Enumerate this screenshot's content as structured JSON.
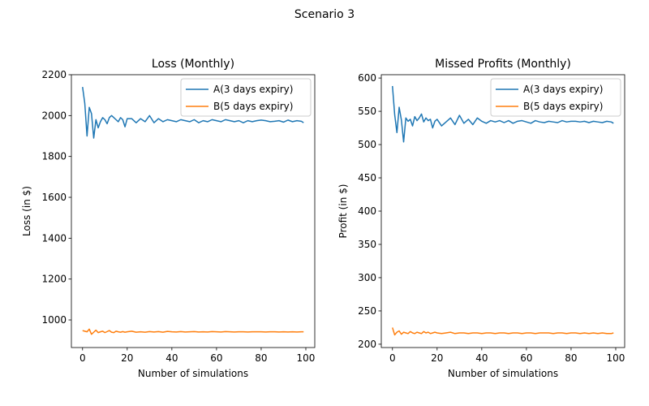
{
  "figure": {
    "suptitle": "Scenario 3"
  },
  "chart_data": [
    {
      "type": "line",
      "title": "Loss (Monthly)",
      "xlabel": "Number of simulations",
      "ylabel": "Loss (in $)",
      "xlim": [
        -5,
        104
      ],
      "ylim": [
        865,
        2200
      ],
      "xticks": [
        0,
        20,
        40,
        60,
        80,
        100
      ],
      "yticks": [
        1000,
        1200,
        1400,
        1600,
        1800,
        2000,
        2200
      ],
      "legend_position": "top-right",
      "grid": false,
      "series": [
        {
          "name": "A(3 days expiry)",
          "color": "#1f77b4",
          "x": [
            0,
            1,
            2,
            3,
            4,
            5,
            6,
            7,
            8,
            9,
            10,
            11,
            12,
            13,
            14,
            15,
            16,
            17,
            18,
            19,
            20,
            22,
            24,
            26,
            28,
            30,
            32,
            34,
            36,
            38,
            40,
            42,
            44,
            46,
            48,
            50,
            52,
            54,
            56,
            58,
            60,
            62,
            64,
            66,
            68,
            70,
            72,
            74,
            76,
            78,
            80,
            82,
            84,
            86,
            88,
            90,
            92,
            94,
            96,
            98,
            99
          ],
          "y": [
            2140,
            2060,
            1900,
            2040,
            2010,
            1890,
            1980,
            1940,
            1970,
            1990,
            1980,
            1960,
            1990,
            2000,
            1990,
            1980,
            1970,
            1990,
            1980,
            1945,
            1985,
            1985,
            1965,
            1985,
            1970,
            2000,
            1965,
            1985,
            1970,
            1980,
            1975,
            1970,
            1980,
            1975,
            1970,
            1980,
            1965,
            1975,
            1970,
            1980,
            1975,
            1970,
            1980,
            1975,
            1970,
            1975,
            1965,
            1975,
            1970,
            1975,
            1978,
            1975,
            1970,
            1972,
            1975,
            1968,
            1978,
            1970,
            1975,
            1972,
            1965
          ]
        },
        {
          "name": "B(5 days expiry)",
          "color": "#ff7f0e",
          "x": [
            0,
            1,
            2,
            3,
            4,
            5,
            6,
            7,
            8,
            9,
            10,
            11,
            12,
            13,
            14,
            15,
            16,
            17,
            18,
            19,
            20,
            22,
            24,
            26,
            28,
            30,
            32,
            34,
            36,
            38,
            40,
            42,
            44,
            46,
            48,
            50,
            52,
            54,
            56,
            58,
            60,
            62,
            64,
            66,
            68,
            70,
            72,
            74,
            76,
            78,
            80,
            82,
            84,
            86,
            88,
            90,
            92,
            94,
            96,
            98,
            99
          ],
          "y": [
            948,
            945,
            942,
            955,
            930,
            940,
            950,
            938,
            942,
            945,
            938,
            943,
            948,
            940,
            938,
            945,
            942,
            940,
            943,
            940,
            942,
            945,
            940,
            942,
            940,
            943,
            941,
            943,
            940,
            944,
            942,
            941,
            943,
            941,
            942,
            943,
            941,
            942,
            941,
            943,
            942,
            941,
            943,
            942,
            941,
            942,
            942,
            941,
            942,
            942,
            942,
            941,
            942,
            942,
            941,
            942,
            941,
            942,
            941,
            942,
            942
          ]
        }
      ]
    },
    {
      "type": "line",
      "title": "Missed Profits (Monthly)",
      "xlabel": "Number of simulations",
      "ylabel": "Profit (in $)",
      "xlim": [
        -5,
        104
      ],
      "ylim": [
        195,
        605
      ],
      "xticks": [
        0,
        20,
        40,
        60,
        80,
        100
      ],
      "yticks": [
        200,
        250,
        300,
        350,
        400,
        450,
        500,
        550,
        600
      ],
      "legend_position": "top-right",
      "grid": false,
      "series": [
        {
          "name": "A(3 days expiry)",
          "color": "#1f77b4",
          "x": [
            0,
            1,
            2,
            3,
            4,
            5,
            6,
            7,
            8,
            9,
            10,
            11,
            12,
            13,
            14,
            15,
            16,
            17,
            18,
            19,
            20,
            22,
            24,
            26,
            28,
            30,
            32,
            34,
            36,
            38,
            40,
            42,
            44,
            46,
            48,
            50,
            52,
            54,
            56,
            58,
            60,
            62,
            64,
            66,
            68,
            70,
            72,
            74,
            76,
            78,
            80,
            82,
            84,
            86,
            88,
            90,
            92,
            94,
            96,
            98,
            99
          ],
          "y": [
            588,
            545,
            518,
            556,
            537,
            504,
            540,
            535,
            538,
            528,
            542,
            536,
            540,
            546,
            534,
            540,
            536,
            538,
            525,
            535,
            538,
            528,
            534,
            540,
            530,
            544,
            532,
            538,
            530,
            540,
            535,
            532,
            536,
            534,
            536,
            533,
            536,
            532,
            535,
            536,
            534,
            532,
            536,
            534,
            533,
            535,
            534,
            533,
            536,
            534,
            535,
            535,
            534,
            535,
            533,
            535,
            534,
            533,
            535,
            534,
            532
          ]
        },
        {
          "name": "B(5 days expiry)",
          "color": "#ff7f0e",
          "x": [
            0,
            1,
            2,
            3,
            4,
            5,
            6,
            7,
            8,
            9,
            10,
            11,
            12,
            13,
            14,
            15,
            16,
            17,
            18,
            19,
            20,
            22,
            24,
            26,
            28,
            30,
            32,
            34,
            36,
            38,
            40,
            42,
            44,
            46,
            48,
            50,
            52,
            54,
            56,
            58,
            60,
            62,
            64,
            66,
            68,
            70,
            72,
            74,
            76,
            78,
            80,
            82,
            84,
            86,
            88,
            90,
            92,
            94,
            96,
            98,
            99
          ],
          "y": [
            225,
            214,
            218,
            220,
            215,
            218,
            217,
            216,
            219,
            217,
            216,
            218,
            217,
            216,
            219,
            217,
            218,
            216,
            217,
            218,
            217,
            216,
            217,
            218,
            216,
            217,
            217,
            216,
            217,
            217,
            216,
            217,
            217,
            216,
            217,
            217,
            216,
            217,
            217,
            216,
            217,
            217,
            216,
            217,
            217,
            217,
            216,
            217,
            217,
            216,
            217,
            217,
            216,
            217,
            216,
            217,
            216,
            217,
            216,
            216,
            217
          ]
        }
      ]
    }
  ]
}
